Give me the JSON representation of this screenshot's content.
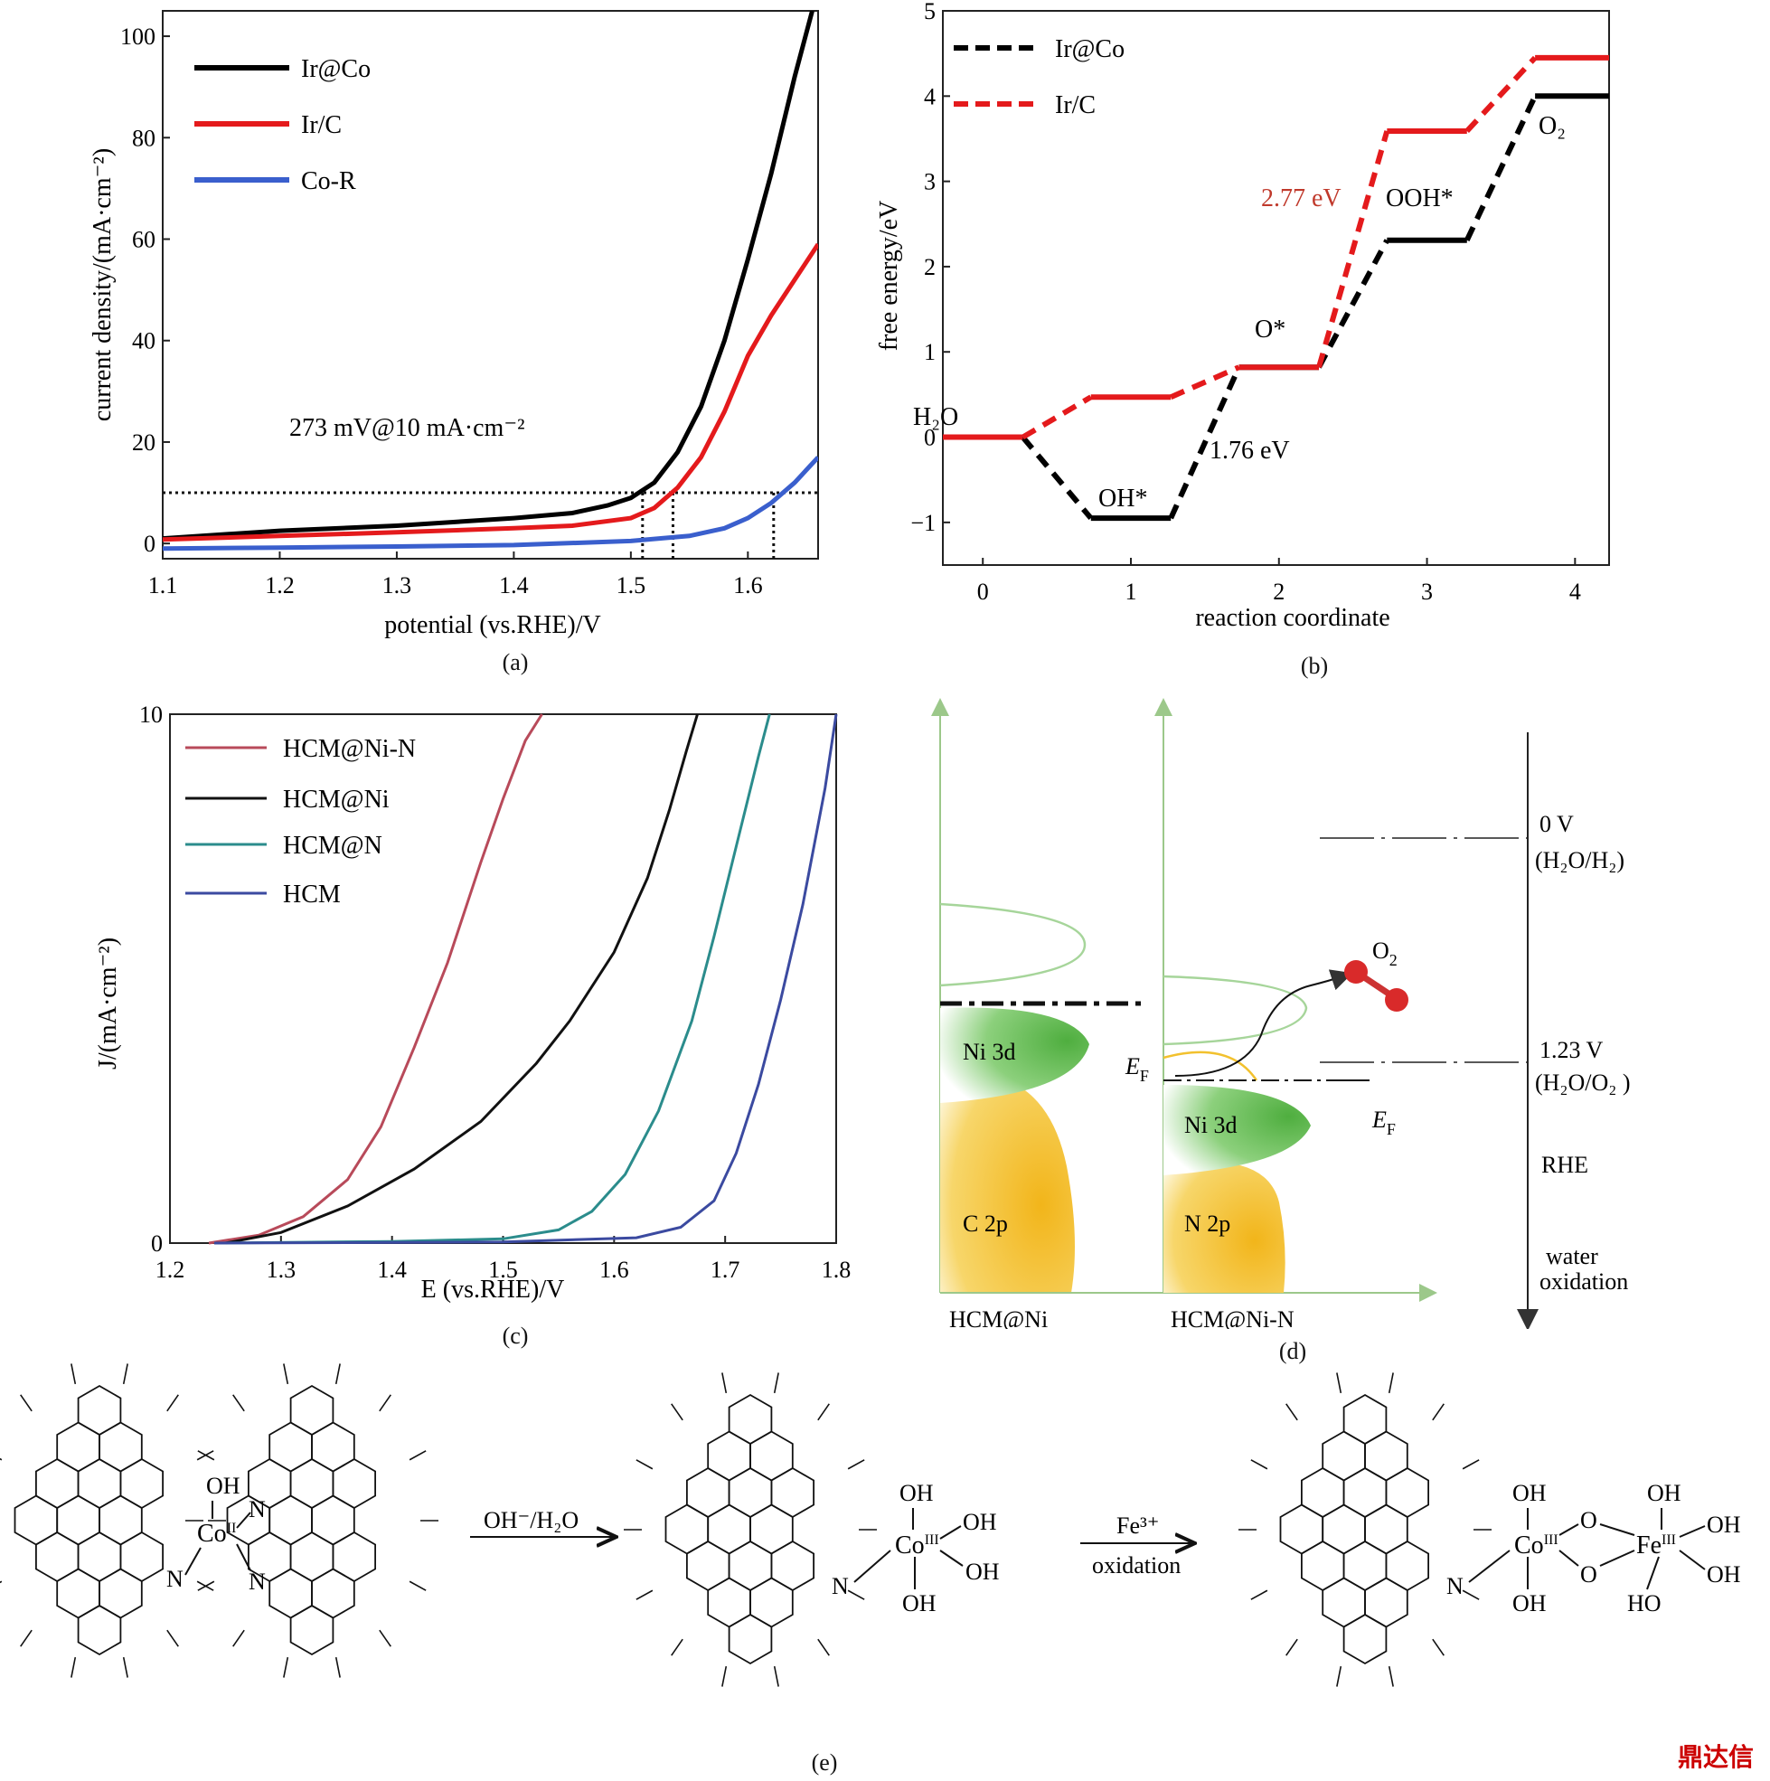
{
  "captions": {
    "a": "(a)",
    "b": "(b)",
    "c": "(c)",
    "d": "(d)",
    "e": "(e)"
  },
  "watermark": "鼎达信",
  "chart_data": [
    {
      "id": "a",
      "type": "line",
      "xlabel": "potential (vs.RHE)/V",
      "ylabel": "current density/(mA·cm⁻²)",
      "xlim": [
        1.1,
        1.66
      ],
      "ylim": [
        -3,
        105
      ],
      "xticks": [
        1.1,
        1.2,
        1.3,
        1.4,
        1.5,
        1.6
      ],
      "xtick_labels": [
        "1.1",
        "1.2",
        "1.3",
        "1.4",
        "1.5",
        "1.6"
      ],
      "yticks": [
        0,
        20,
        40,
        60,
        80,
        100
      ],
      "ytick_labels": [
        "0",
        "20",
        "40",
        "60",
        "80",
        "100"
      ],
      "legend_position": "top-left",
      "annotation": "273 mV@10 mA·cm⁻²",
      "reference": {
        "y": 10,
        "x_markers": [
          1.51,
          1.536,
          1.622
        ]
      },
      "series": [
        {
          "name": "Ir@Co",
          "color": "#000000",
          "x": [
            1.1,
            1.2,
            1.3,
            1.4,
            1.45,
            1.48,
            1.5,
            1.52,
            1.54,
            1.56,
            1.58,
            1.6,
            1.62,
            1.64,
            1.655
          ],
          "y": [
            1,
            2.5,
            3.5,
            5,
            6,
            7.5,
            9,
            12,
            18,
            27,
            40,
            56,
            73,
            92,
            105
          ]
        },
        {
          "name": "Ir/C",
          "color": "#e41a1c",
          "x": [
            1.1,
            1.2,
            1.3,
            1.4,
            1.45,
            1.5,
            1.52,
            1.54,
            1.56,
            1.58,
            1.6,
            1.62,
            1.64,
            1.66
          ],
          "y": [
            0.8,
            1.5,
            2.2,
            3,
            3.5,
            5,
            7,
            11,
            17,
            26,
            37,
            45,
            52,
            59
          ]
        },
        {
          "name": "Co-R",
          "color": "#3a5fcd",
          "x": [
            1.1,
            1.2,
            1.3,
            1.4,
            1.5,
            1.55,
            1.58,
            1.6,
            1.62,
            1.64,
            1.66
          ],
          "y": [
            -1,
            -0.8,
            -0.6,
            -0.3,
            0.5,
            1.5,
            3,
            5,
            8,
            12,
            17
          ]
        }
      ]
    },
    {
      "id": "b",
      "type": "line",
      "xlabel": "reaction coordinate",
      "ylabel": "free energy/eV",
      "xlim": [
        -0.27,
        4.23
      ],
      "ylim": [
        -1.5,
        5
      ],
      "xticks": [
        0,
        1,
        2,
        3,
        4
      ],
      "xtick_labels": [
        "0",
        "1",
        "2",
        "3",
        "4"
      ],
      "yticks": [
        -1,
        0,
        1,
        2,
        3,
        4,
        5
      ],
      "ytick_labels": [
        "−1",
        "0",
        "1",
        "2",
        "3",
        "4",
        "5"
      ],
      "legend_position": "top-left",
      "series": [
        {
          "name": "Ir@Co",
          "color": "#000000",
          "levels": [
            0,
            -0.95,
            0.82,
            2.31,
            4.0
          ]
        },
        {
          "name": "Ir/C",
          "color": "#e41a1c",
          "levels": [
            0,
            0.47,
            0.82,
            3.59,
            4.45
          ]
        }
      ],
      "step_labels": {
        "h2o": "H₂O",
        "oh": "OH*",
        "o": "O*",
        "ooh": "OOH*",
        "o2": "O₂"
      },
      "annotations": {
        "ir_co_barrier": "1.76 eV",
        "ir_c_barrier": "2.77 eV"
      }
    },
    {
      "id": "c",
      "type": "line",
      "xlabel": "E (vs.RHE)/V",
      "ylabel": "J/(mA·cm⁻²)",
      "xlim": [
        1.2,
        1.8
      ],
      "ylim": [
        0,
        10
      ],
      "xticks": [
        1.2,
        1.3,
        1.4,
        1.5,
        1.6,
        1.7,
        1.8
      ],
      "xtick_labels": [
        "1.2",
        "1.3",
        "1.4",
        "1.5",
        "1.6",
        "1.7",
        "1.8"
      ],
      "yticks": [
        0,
        10
      ],
      "ytick_labels": [
        "0",
        "10"
      ],
      "legend_position": "top-left",
      "series": [
        {
          "name": "HCM@Ni-N",
          "color": "#b84a5a",
          "x": [
            1.235,
            1.28,
            1.32,
            1.36,
            1.39,
            1.42,
            1.45,
            1.48,
            1.5,
            1.52,
            1.535
          ],
          "y": [
            0,
            0.15,
            0.5,
            1.2,
            2.2,
            3.7,
            5.3,
            7.2,
            8.4,
            9.5,
            10
          ]
        },
        {
          "name": "HCM@Ni",
          "color": "#111111",
          "x": [
            1.25,
            1.3,
            1.36,
            1.42,
            1.48,
            1.53,
            1.56,
            1.6,
            1.63,
            1.65,
            1.665,
            1.675
          ],
          "y": [
            0,
            0.2,
            0.7,
            1.4,
            2.3,
            3.4,
            4.2,
            5.5,
            6.9,
            8.2,
            9.3,
            10
          ]
        },
        {
          "name": "HCM@N",
          "color": "#2b8c8c",
          "x": [
            1.24,
            1.4,
            1.5,
            1.55,
            1.58,
            1.61,
            1.64,
            1.67,
            1.69,
            1.71,
            1.73,
            1.74
          ],
          "y": [
            0,
            0.03,
            0.08,
            0.25,
            0.6,
            1.3,
            2.5,
            4.2,
            5.8,
            7.5,
            9.2,
            10
          ]
        },
        {
          "name": "HCM",
          "color": "#3b4aa0",
          "x": [
            1.24,
            1.5,
            1.62,
            1.66,
            1.69,
            1.71,
            1.73,
            1.75,
            1.77,
            1.79,
            1.8
          ],
          "y": [
            0,
            0.02,
            0.1,
            0.3,
            0.8,
            1.7,
            3.0,
            4.6,
            6.4,
            8.6,
            10
          ]
        }
      ]
    }
  ],
  "panel_d": {
    "left_label": "HCM@Ni",
    "right_label": "HCM@Ni-N",
    "left_d_band": "Ni 3d",
    "left_p_band": "C 2p",
    "right_d_band": "Ni 3d",
    "right_p_band": "N 2p",
    "fermi_label": "E",
    "fermi_sub": "F",
    "o2_label": "O",
    "o2_sub": "2",
    "scale_0v_value": "0  V",
    "scale_0v_couple": "(H₂O/H₂)",
    "scale_123_value": "1.23 V",
    "scale_123_couple": "(H₂O/O₂ )",
    "scale_rhe": "RHE",
    "scale_water_1": "water",
    "scale_water_2": "oxidation",
    "colors": {
      "green": "#5cb84a",
      "yellow": "#f2c12e",
      "axis": "#9cc88a"
    }
  },
  "panel_e": {
    "struct1_oh": "OH",
    "struct1_co": "Co",
    "struct1_ox": "II",
    "struct1_n_top": "N",
    "struct1_n_bot": "N",
    "struct1_n_left": "N",
    "arrow1_label": "OH⁻/H₂O",
    "struct2_co": "Co",
    "struct2_ox": "III",
    "struct2_oh1": "OH",
    "struct2_oh2": "OH",
    "struct2_oh3": "OH",
    "struct2_oh4": "OH",
    "struct2_n": "N",
    "arrow2_label_1": "Fe³⁺",
    "arrow2_label_2": "oxidation",
    "struct3_co": "Co",
    "struct3_co_ox": "III",
    "struct3_fe": "Fe",
    "struct3_fe_ox": "III",
    "struct3_o1": "O",
    "struct3_o2": "O",
    "struct3_oh_top": "OH",
    "struct3_oh_bot": "OH",
    "struct3_fe_oh1": "OH",
    "struct3_fe_oh2": "OH",
    "struct3_fe_oh3": "OH",
    "struct3_fe_ho": "HO",
    "struct3_n": "N"
  }
}
